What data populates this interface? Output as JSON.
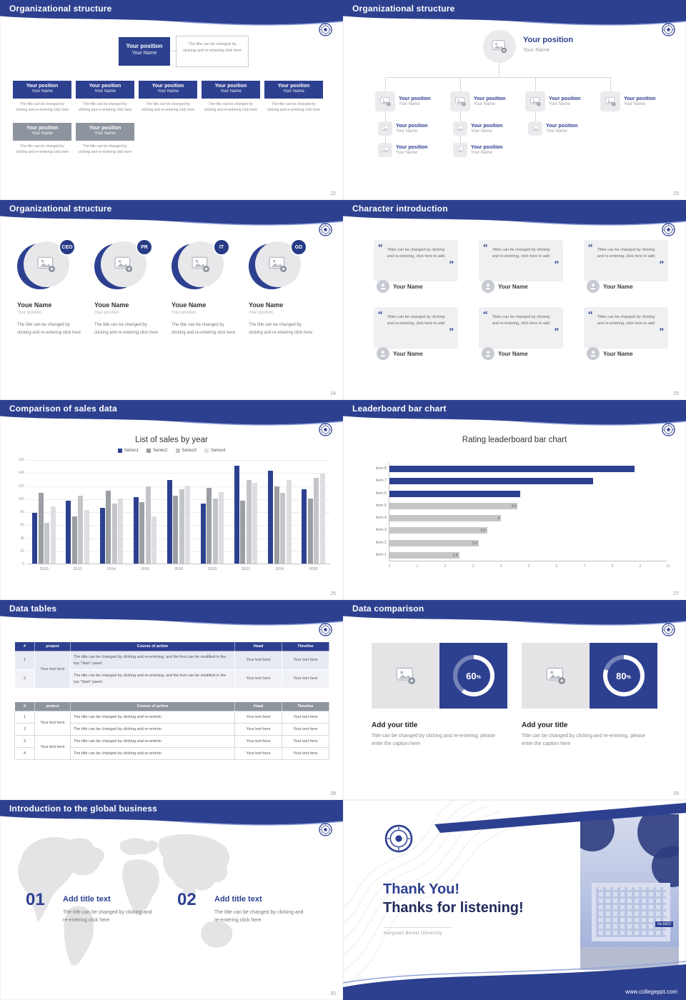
{
  "colors": {
    "brand": "#2d4090",
    "brand_dark": "#222a5c",
    "accent_light": "#94a4d9",
    "gray_header": "#8d949e"
  },
  "common": {
    "position_label": "Your position",
    "name_label": "Your Name",
    "youe_name_label": "Youe Name",
    "your_text_here": "Your text here",
    "placeholder_click": "The title can be changed by clicking and re-entering click here",
    "placeholder_quote": "Titles can be changed by clicking and re-entering, click here to add",
    "placeholder_table_long": "The title can be changed by clicking and re-entering, and the font can be modified in the top \"Start\" panel",
    "placeholder_table_short": "The title can be changed by clicking and re-enterin"
  },
  "slides": {
    "s1": {
      "title": "Organizational structure",
      "page": "22"
    },
    "s2": {
      "title": "Organizational structure",
      "page": "23"
    },
    "s3": {
      "title": "Organizational structure",
      "page": "24",
      "roles": [
        "CEO",
        "PR",
        "IT",
        "GD"
      ]
    },
    "s4": {
      "title": "Character introduction",
      "page": "25"
    },
    "s5": {
      "title": "Comparison of sales data",
      "page": "26"
    },
    "s6": {
      "title": "Leaderboard bar chart",
      "page": "27"
    },
    "s7": {
      "title": "Data tables",
      "page": "28",
      "headers": [
        "#",
        "project",
        "Course of action",
        "Head",
        "Timeline"
      ],
      "t1_rows": [
        "1",
        "2"
      ],
      "t2_rows": [
        "1",
        "2",
        "3",
        "4"
      ]
    },
    "s8": {
      "title": "Data comparison",
      "page": "29",
      "items": [
        {
          "percent": "60"
        },
        {
          "percent": "80"
        }
      ],
      "percent_suffix": "%",
      "item_title": "Add your title",
      "item_caption": "Title can be changed by clicking and re-entering, please enter the caption here"
    },
    "s9": {
      "title": "Introduction to the global business",
      "page": "30",
      "items": [
        {
          "num": "01",
          "title": "Add title text"
        },
        {
          "num": "02",
          "title": "Add title text"
        }
      ]
    },
    "s10": {
      "thank_you": "Thank You!",
      "thanks": "Thanks for listening!",
      "university": "Kangnam Benial University",
      "website": "www.collegeppt.com",
      "photo_sign": "No.6922"
    }
  },
  "chart_data": [
    {
      "type": "bar",
      "title": "List of sales by year",
      "categories": [
        "2010",
        "2012",
        "2014",
        "2016",
        "2018",
        "2020",
        "2022",
        "2024",
        "2026"
      ],
      "series": [
        {
          "name": "Series1",
          "color": "#2d4090",
          "values": [
            78,
            96,
            86,
            102,
            128,
            92,
            150,
            142,
            114
          ]
        },
        {
          "name": "Series2",
          "color": "#9b9ea3",
          "values": [
            108,
            72,
            112,
            94,
            104,
            116,
            96,
            118,
            100
          ]
        },
        {
          "name": "Series3",
          "color": "#c3c5c9",
          "values": [
            62,
            104,
            92,
            118,
            114,
            100,
            128,
            108,
            132
          ]
        },
        {
          "name": "Series4",
          "color": "#dddee1",
          "values": [
            88,
            82,
            100,
            72,
            120,
            110,
            124,
            128,
            138
          ]
        }
      ],
      "ylim": [
        0,
        160
      ],
      "ytick_step": 20,
      "grid": true,
      "legend_position": "top",
      "xlabel": "",
      "ylabel": ""
    },
    {
      "type": "bar-horizontal",
      "title": "Rating leaderboard bar chart",
      "categories": [
        "Item 1",
        "Item 2",
        "Item 3",
        "Item 4",
        "Item 5",
        "Item 6",
        "Item 7",
        "Item 8"
      ],
      "values": [
        2.5,
        3.2,
        3.5,
        4,
        4.6,
        4.7,
        7.3,
        8.8
      ],
      "colors": [
        "#c6c6c9",
        "#c6c6c9",
        "#c6c6c9",
        "#c6c6c9",
        "#c6c6c9",
        "#2d4090",
        "#2d4090",
        "#2d4090"
      ],
      "labels": [
        "2.5",
        "3.2",
        "3.5",
        "4",
        "4.6",
        "",
        "",
        ""
      ],
      "xlim": [
        0,
        10
      ],
      "xticks": [
        0,
        1,
        2,
        3,
        4,
        5,
        6,
        7,
        8,
        9,
        10
      ],
      "grid": false
    }
  ]
}
